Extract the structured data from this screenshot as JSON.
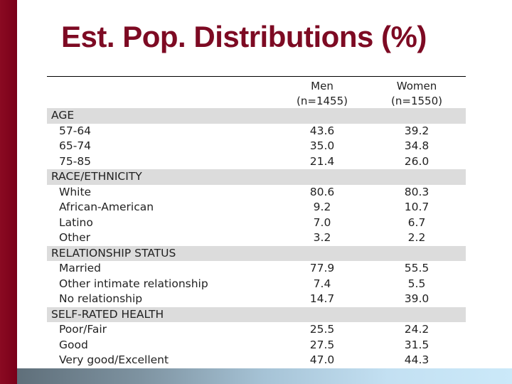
{
  "slide": {
    "title": "Est. Pop. Distributions (%)"
  },
  "table": {
    "columns": [
      {
        "line1": "Men",
        "line2": "(n=1455)"
      },
      {
        "line1": "Women",
        "line2": "(n=1550)"
      }
    ],
    "rows": [
      {
        "type": "cat",
        "label": "AGE"
      },
      {
        "type": "item",
        "label": "57-64",
        "men": "43.6",
        "women": "39.2"
      },
      {
        "type": "item",
        "label": "65-74",
        "men": "35.0",
        "women": "34.8"
      },
      {
        "type": "item",
        "label": "75-85",
        "men": "21.4",
        "women": "26.0"
      },
      {
        "type": "cat",
        "label": "RACE/ETHNICITY"
      },
      {
        "type": "item",
        "label": "White",
        "men": "80.6",
        "women": "80.3"
      },
      {
        "type": "item",
        "label": "African-American",
        "men": "9.2",
        "women": "10.7"
      },
      {
        "type": "item",
        "label": "Latino",
        "men": "7.0",
        "women": "6.7"
      },
      {
        "type": "item",
        "label": "Other",
        "men": "3.2",
        "women": "2.2"
      },
      {
        "type": "cat",
        "label": "RELATIONSHIP STATUS"
      },
      {
        "type": "item",
        "label": "Married",
        "men": "77.9",
        "women": "55.5"
      },
      {
        "type": "item",
        "label": "Other intimate relationship",
        "men": "7.4",
        "women": "5.5"
      },
      {
        "type": "item",
        "label": "No relationship",
        "men": "14.7",
        "women": "39.0"
      },
      {
        "type": "cat",
        "label": "SELF-RATED HEALTH"
      },
      {
        "type": "item",
        "label": "Poor/Fair",
        "men": "25.5",
        "women": "24.2"
      },
      {
        "type": "item",
        "label": "Good",
        "men": "27.5",
        "women": "31.5"
      },
      {
        "type": "item",
        "label": "Very good/Excellent",
        "men": "47.0",
        "women": "44.3"
      }
    ]
  },
  "colors": {
    "title": "#7d0a23",
    "left_bar": "#7a0019",
    "category_row": "#dcdcdc"
  }
}
